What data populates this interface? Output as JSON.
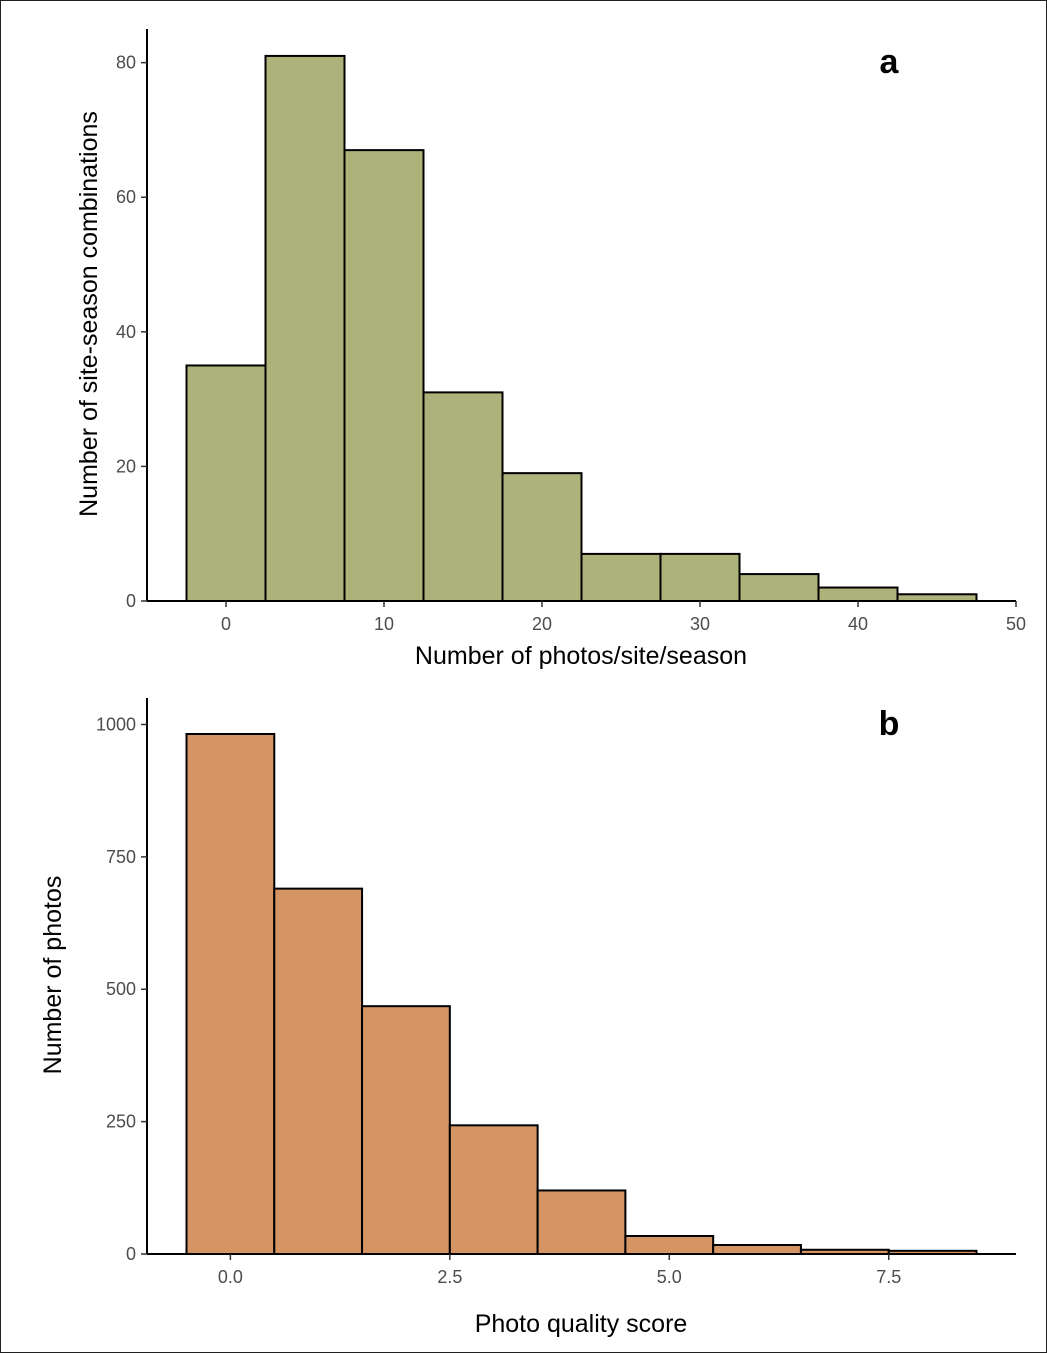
{
  "chart_data": [
    {
      "type": "bar",
      "panel_label": "a",
      "xlabel": "Number of photos/site/season",
      "ylabel": "Number of site-season combinations",
      "bin_width": 5,
      "bins": [
        {
          "center": 0,
          "count": 35
        },
        {
          "center": 5,
          "count": 81
        },
        {
          "center": 10,
          "count": 67
        },
        {
          "center": 15,
          "count": 31
        },
        {
          "center": 20,
          "count": 19
        },
        {
          "center": 25,
          "count": 7
        },
        {
          "center": 30,
          "count": 7
        },
        {
          "center": 35,
          "count": 4
        },
        {
          "center": 40,
          "count": 2
        },
        {
          "center": 45,
          "count": 1
        }
      ],
      "xlim": [
        -5,
        50
      ],
      "ylim": [
        0,
        85
      ],
      "xticks": [
        0,
        10,
        20,
        30,
        40,
        50
      ],
      "xtick_labels": [
        "0",
        "10",
        "20",
        "30",
        "40",
        "50"
      ],
      "yticks": [
        0,
        20,
        40,
        60,
        80
      ],
      "ytick_labels": [
        "0",
        "20",
        "40",
        "60",
        "80"
      ],
      "fill_color": "#adb27b",
      "grid": false
    },
    {
      "type": "bar",
      "panel_label": "b",
      "xlabel": "Photo quality score",
      "ylabel": "Number of photos",
      "bin_width": 1,
      "bins": [
        {
          "center": 0,
          "count": 982
        },
        {
          "center": 1,
          "count": 690
        },
        {
          "center": 2,
          "count": 468
        },
        {
          "center": 3,
          "count": 243
        },
        {
          "center": 4,
          "count": 120
        },
        {
          "center": 5,
          "count": 34
        },
        {
          "center": 6,
          "count": 17
        },
        {
          "center": 7,
          "count": 8
        },
        {
          "center": 8,
          "count": 6
        }
      ],
      "xlim": [
        -0.95,
        8.95
      ],
      "ylim": [
        0,
        1050
      ],
      "xticks": [
        0,
        2.5,
        5,
        7.5
      ],
      "xtick_labels": [
        "0.0",
        "2.5",
        "5.0",
        "7.5"
      ],
      "yticks": [
        0,
        250,
        500,
        750,
        1000
      ],
      "ytick_labels": [
        "0",
        "250",
        "500",
        "750",
        "1000"
      ],
      "fill_color": "#d49464",
      "grid": false
    }
  ]
}
